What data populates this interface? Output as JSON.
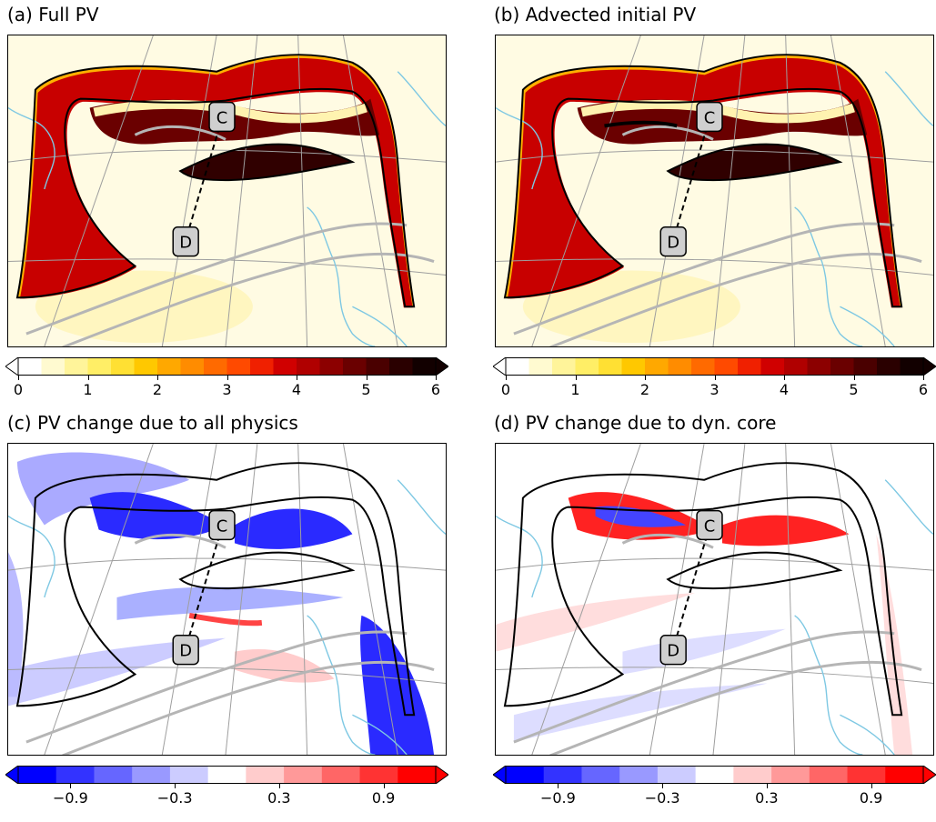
{
  "panels": [
    {
      "id": "a",
      "title": "(a) Full PV",
      "kind": "pv"
    },
    {
      "id": "b",
      "title": "(b) Advected initial PV",
      "kind": "pv"
    },
    {
      "id": "c",
      "title": "(c) PV change due to all physics",
      "kind": "diff"
    },
    {
      "id": "d",
      "title": "(d) PV change due to dyn. core",
      "kind": "diff"
    }
  ],
  "markers": {
    "c": "C",
    "d": "D"
  },
  "colorbars": {
    "pv": {
      "ticks": [
        "0",
        "1",
        "2",
        "3",
        "4",
        "5",
        "6"
      ],
      "values": [
        0,
        1,
        2,
        3,
        4,
        5,
        6
      ],
      "range": [
        0,
        6
      ],
      "colors": [
        "#ffffff",
        "#fffad0",
        "#fff49a",
        "#ffee66",
        "#ffe033",
        "#ffc800",
        "#ffa800",
        "#ff8c00",
        "#ff6a00",
        "#ff4a00",
        "#f02000",
        "#d00000",
        "#b00000",
        "#8c0000",
        "#6a0000",
        "#4a0000",
        "#2a0000",
        "#120000"
      ]
    },
    "diff": {
      "ticks": [
        "−0.9",
        "−0.3",
        "0.3",
        "0.9"
      ],
      "values": [
        -0.9,
        -0.3,
        0.3,
        0.9
      ],
      "range": [
        -1.2,
        1.2
      ],
      "colors": [
        "#0000ff",
        "#3333ff",
        "#6666ff",
        "#9999ff",
        "#ccccff",
        "#ffffff",
        "#ffcccc",
        "#ff9999",
        "#ff6666",
        "#ff3333",
        "#ff0000"
      ]
    }
  },
  "chart_data": [
    {
      "type": "heatmap",
      "title": "(a) Full PV",
      "colorbar_range": [
        0,
        6
      ]
    },
    {
      "type": "heatmap",
      "title": "(b) Advected initial PV",
      "colorbar_range": [
        0,
        6
      ]
    },
    {
      "type": "heatmap",
      "title": "(c) PV change due to all physics",
      "colorbar_ticks": [
        -0.9,
        -0.3,
        0.3,
        0.9
      ]
    },
    {
      "type": "heatmap",
      "title": "(d) PV change due to dyn. core",
      "colorbar_ticks": [
        -0.9,
        -0.3,
        0.3,
        0.9
      ]
    }
  ]
}
